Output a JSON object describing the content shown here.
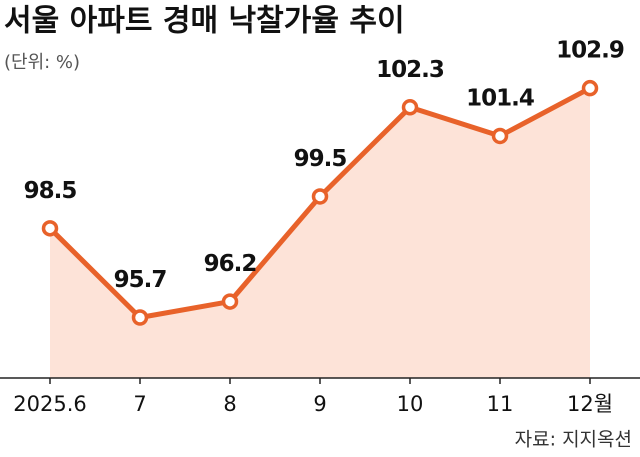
{
  "chart_data": {
    "type": "line",
    "title": "서울 아파트 경매 낙찰가율 추이",
    "subtitle": "(단위: %)",
    "source": "자료: 지지옥션",
    "categories": [
      "2025.6",
      "7",
      "8",
      "9",
      "10",
      "11",
      "12월"
    ],
    "series": [
      {
        "color": "#e8622a",
        "values": [
          98.5,
          95.7,
          96.2,
          99.5,
          102.3,
          101.4,
          102.9
        ]
      }
    ],
    "area_color": "#fde3d8",
    "ylim": [
      93.8,
      103.0
    ]
  }
}
